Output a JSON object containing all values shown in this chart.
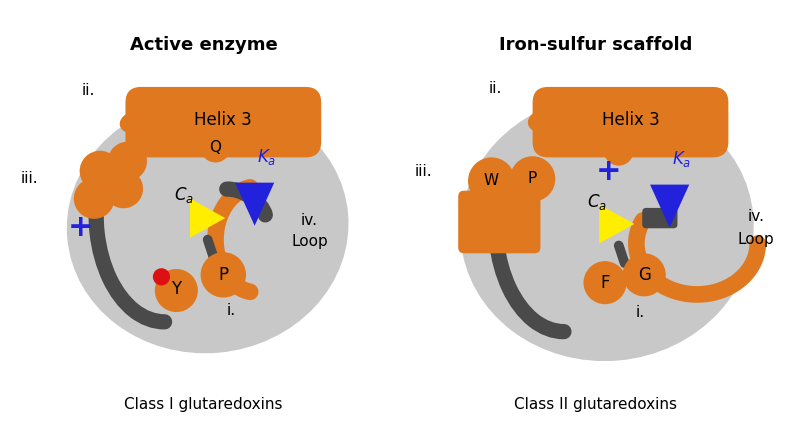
{
  "bg_color": "#ffffff",
  "gray_blob_color": "#c8c8c8",
  "orange_color": "#e07820",
  "dark_gray": "#4a4a4a",
  "blue_color": "#2222dd",
  "yellow_color": "#ffee00",
  "red_color": "#dd1111",
  "title_left": "Active enzyme",
  "title_right": "Iron-sulfur scaffold",
  "subtitle_left": "Class I glutaredoxins",
  "subtitle_right": "Class II glutaredoxins"
}
